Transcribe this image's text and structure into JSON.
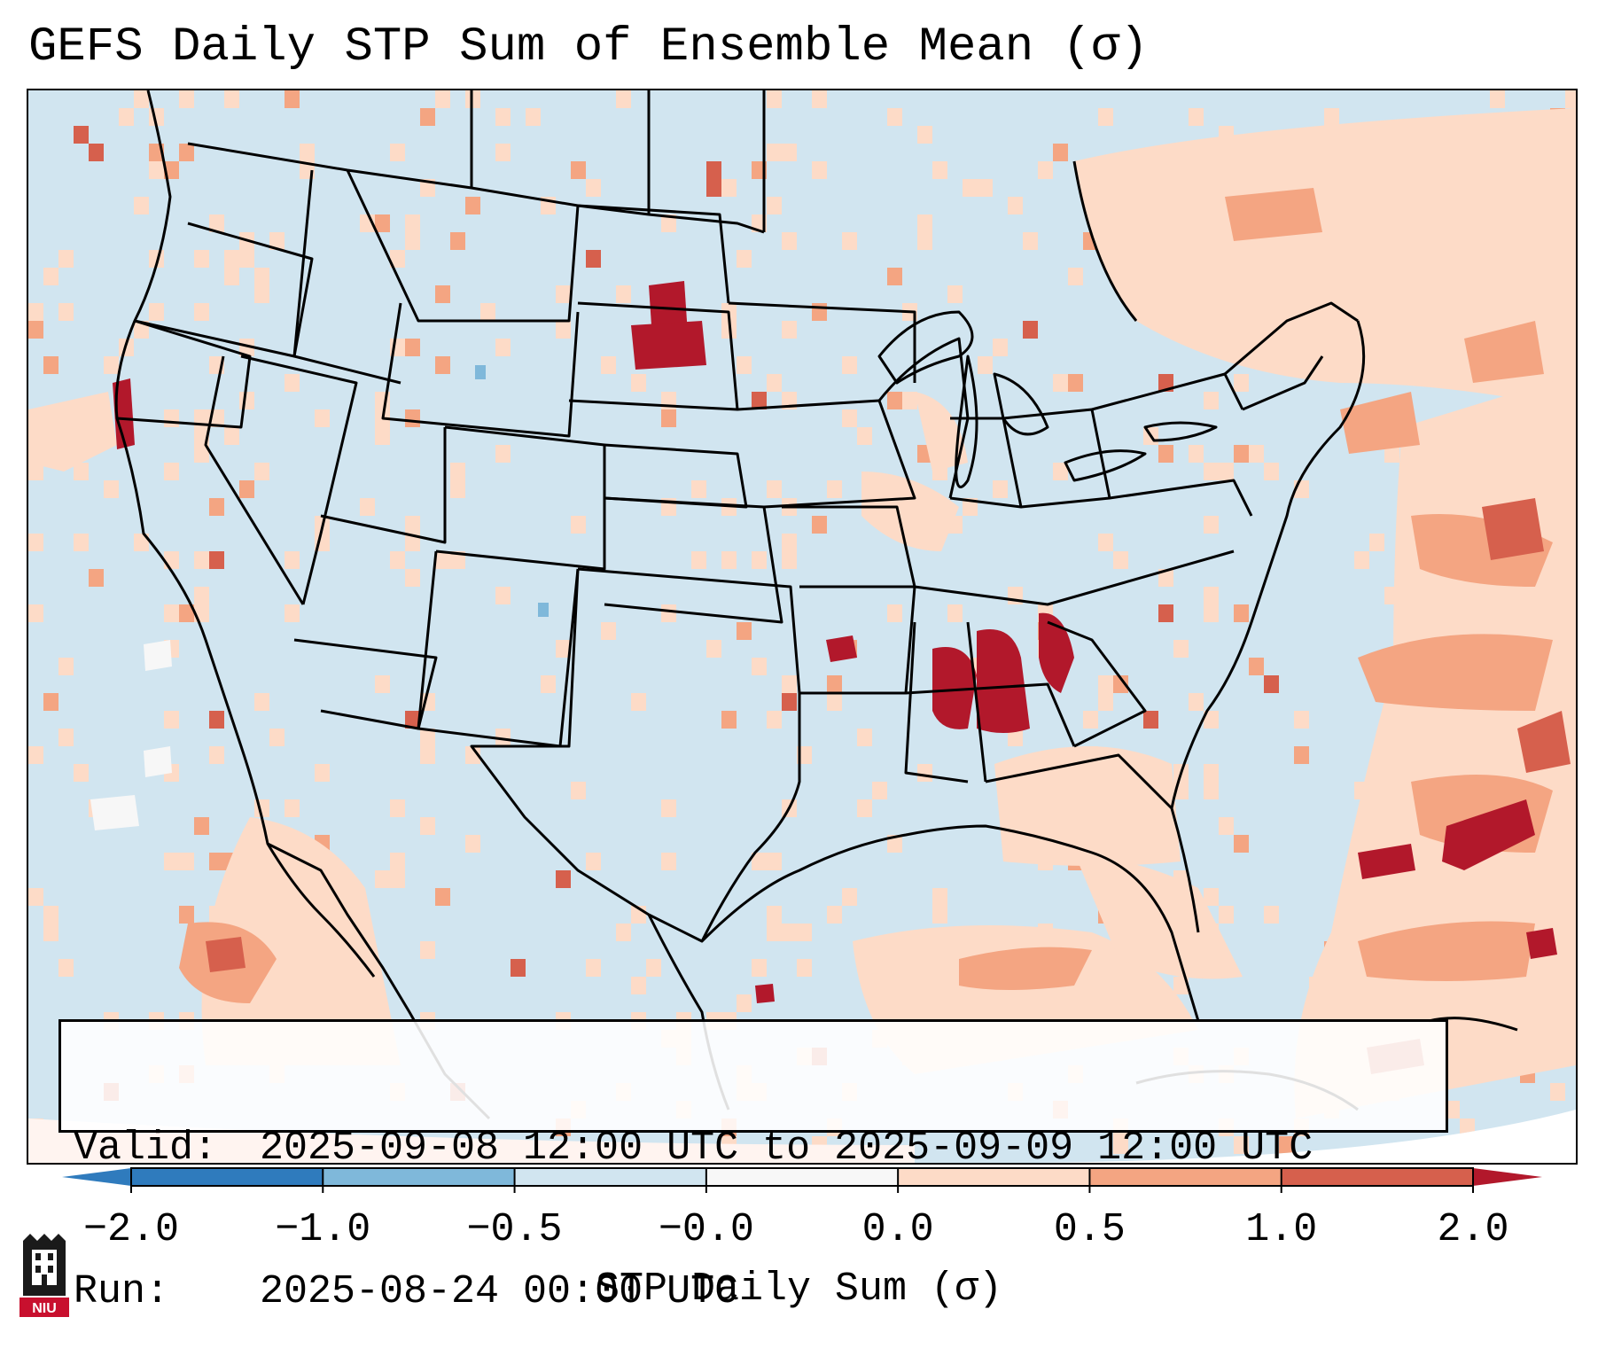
{
  "title": "GEFS Daily STP Sum of Ensemble Mean (σ)",
  "info": {
    "valid_label": "Valid:",
    "valid_value": "2025-09-08 12:00 UTC to 2025-09-09 12:00 UTC",
    "run_label": "Run:",
    "run_value": "2025-08-24 00:00 UTC"
  },
  "colorbar": {
    "label": "STP Daily Sum (σ)",
    "ticks": [
      "−2.0",
      "−1.0",
      "−0.5",
      "−0.0",
      "0.0",
      "0.5",
      "1.0",
      "2.0"
    ],
    "colors": [
      "#2f7bbd",
      "#7fb8da",
      "#d1e5f0",
      "#f7f7f7",
      "#fddbc7",
      "#f4a582",
      "#d6604d",
      "#b2182b"
    ]
  },
  "logo": {
    "text": "NIU"
  },
  "map": {
    "region": "CONUS",
    "hotspots": [
      {
        "name": "Northern California coast",
        "level": "high"
      },
      {
        "name": "North Dakota / South Dakota border",
        "level": "high"
      },
      {
        "name": "Alabama / Georgia",
        "level": "high"
      },
      {
        "name": "Atlantic off Southeast coast",
        "level": "high"
      },
      {
        "name": "Gulf of Mexico",
        "level": "moderate"
      },
      {
        "name": "Ontario / New England",
        "level": "moderate"
      }
    ]
  }
}
